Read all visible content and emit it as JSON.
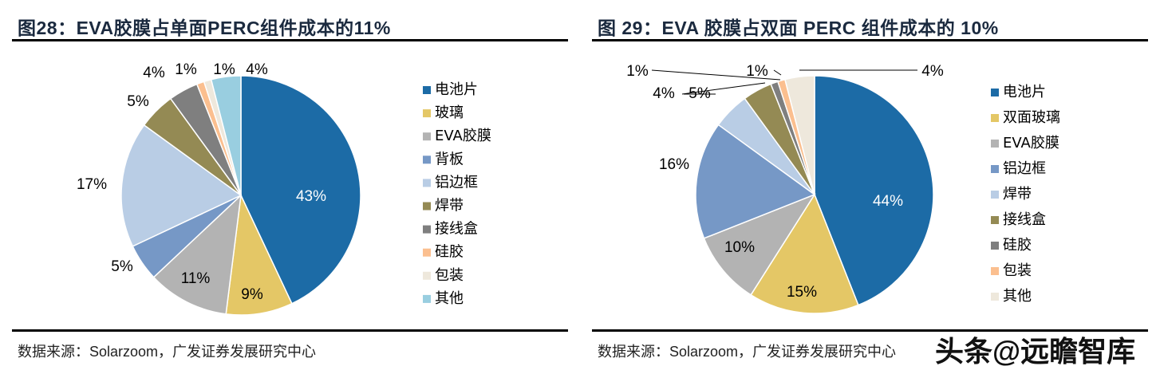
{
  "chart_data": [
    {
      "type": "pie",
      "title": "图28：EVA胶膜占单面PERC组件成本的11%",
      "categories": [
        "电池片",
        "玻璃",
        "EVA胶膜",
        "背板",
        "铝边框",
        "焊带",
        "接线盒",
        "硅胶",
        "包装",
        "其他"
      ],
      "values": [
        43,
        9,
        11,
        5,
        17,
        5,
        4,
        1,
        1,
        4
      ],
      "data_labels": [
        "43%",
        "9%",
        "11%",
        "5%",
        "17%",
        "5%",
        "4%",
        "1%",
        "1%",
        "4%"
      ],
      "colors": [
        "#1c6ba6",
        "#e4c766",
        "#b3b3b3",
        "#7698c6",
        "#b9cde5",
        "#948a54",
        "#7f7f7f",
        "#fbbf8f",
        "#eee8dc",
        "#99cee0"
      ],
      "legend": "right",
      "source": "数据来源：Solarzoom，广发证券发展研究中心"
    },
    {
      "type": "pie",
      "title": "图 29：EVA 胶膜占双面 PERC 组件成本的 10%",
      "categories": [
        "电池片",
        "双面玻璃",
        "EVA胶膜",
        "铝边框",
        "焊带",
        "接线盒",
        "硅胶",
        "包装",
        "其他"
      ],
      "values": [
        44,
        15,
        10,
        16,
        5,
        4,
        1,
        1,
        4
      ],
      "data_labels": [
        "44%",
        "15%",
        "10%",
        "16%",
        "5%",
        "4%",
        "1%",
        "1%",
        "4%"
      ],
      "colors": [
        "#1c6ba6",
        "#e4c766",
        "#b3b3b3",
        "#7698c6",
        "#b9cde5",
        "#948a54",
        "#7f7f7f",
        "#fbbf8f",
        "#eee8dc"
      ],
      "legend": "right",
      "source": "数据来源：Solarzoom，广发证券发展研究中心"
    }
  ],
  "watermark": "头条@远瞻智库"
}
